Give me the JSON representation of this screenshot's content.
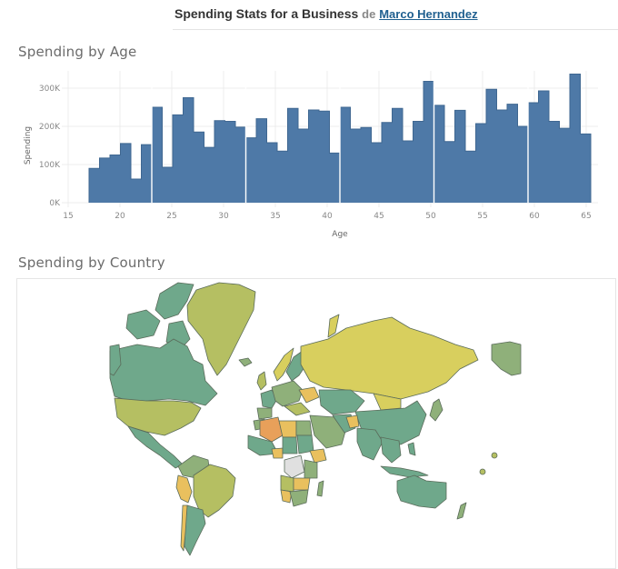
{
  "header": {
    "title": "Spending Stats for a Business",
    "by": "de",
    "author": "Marco Hernandez"
  },
  "sections": {
    "histogram_title": "Spending by Age",
    "map_title": "Spending by Country"
  },
  "colors": {
    "bar": "#4e79a7",
    "grid": "#ececec",
    "axis_text": "#888888",
    "map_teal": "#6fa88b",
    "map_sage": "#8fb07a",
    "map_olive": "#b5bf62",
    "map_yellow": "#d8cf5e",
    "map_light_orange": "#e9c05e",
    "map_orange": "#e8a05a",
    "map_nodata": "#e0e0e0",
    "map_border": "#5a6b5a"
  },
  "chart_data": [
    {
      "type": "bar",
      "title": "Spending by Age",
      "xlabel": "Age",
      "ylabel": "Spending",
      "xlim": [
        15,
        66
      ],
      "ylim": [
        0,
        340000
      ],
      "x_ticks": [
        15,
        20,
        25,
        30,
        35,
        40,
        45,
        50,
        55,
        60,
        65
      ],
      "y_ticks": [
        0,
        100000,
        200000,
        300000
      ],
      "y_tick_labels": [
        "0K",
        "100K",
        "200K",
        "300K"
      ],
      "grid": true,
      "legend": "none",
      "categories": [
        18,
        19,
        20,
        21,
        22,
        23,
        24,
        25,
        26,
        27,
        28,
        29,
        30,
        31,
        32,
        33,
        34,
        35,
        36,
        37,
        38,
        39,
        40,
        41,
        42,
        43,
        44,
        45,
        46,
        47,
        48,
        49,
        50,
        51,
        52,
        53,
        54,
        55,
        56,
        57,
        58,
        59,
        60,
        61,
        62,
        63,
        64,
        65
      ],
      "values": [
        90000,
        117000,
        125000,
        155000,
        62000,
        152000,
        250000,
        93000,
        230000,
        275000,
        185000,
        145000,
        215000,
        213000,
        198000,
        170000,
        220000,
        157000,
        135000,
        247000,
        193000,
        243000,
        240000,
        130000,
        250000,
        193000,
        197000,
        157000,
        210000,
        247000,
        162000,
        213000,
        318000,
        255000,
        160000,
        242000,
        135000,
        207000,
        297000,
        243000,
        258000,
        200000,
        262000,
        293000,
        213000,
        195000,
        337000,
        180000
      ],
      "separators_after_age": [
        23,
        32,
        41,
        50,
        59
      ]
    },
    {
      "type": "heatmap",
      "title": "Spending by Country",
      "subtype": "choropleth",
      "legend": "none",
      "regions": [
        {
          "name": "Canada",
          "level": "teal-green"
        },
        {
          "name": "Greenland",
          "level": "olive"
        },
        {
          "name": "United States",
          "level": "olive"
        },
        {
          "name": "Alaska",
          "level": "sage"
        },
        {
          "name": "Mexico",
          "level": "teal"
        },
        {
          "name": "Brazil",
          "level": "olive"
        },
        {
          "name": "Argentina",
          "level": "teal"
        },
        {
          "name": "Peru",
          "level": "light-orange"
        },
        {
          "name": "Russia",
          "level": "yellow"
        },
        {
          "name": "China",
          "level": "teal"
        },
        {
          "name": "Mongolia",
          "level": "yellow"
        },
        {
          "name": "India",
          "level": "teal"
        },
        {
          "name": "Kazakhstan",
          "level": "teal"
        },
        {
          "name": "Afghanistan",
          "level": "light-orange"
        },
        {
          "name": "Algeria",
          "level": "orange"
        },
        {
          "name": "Libya",
          "level": "light-orange"
        },
        {
          "name": "Egypt",
          "level": "sage"
        },
        {
          "name": "Sudan",
          "level": "teal"
        },
        {
          "name": "Ethiopia",
          "level": "light-orange"
        },
        {
          "name": "DR Congo",
          "level": "no-data"
        },
        {
          "name": "Namibia",
          "level": "light-orange"
        },
        {
          "name": "South Africa",
          "level": "sage"
        },
        {
          "name": "Madagascar",
          "level": "sage"
        },
        {
          "name": "Australia",
          "level": "teal"
        },
        {
          "name": "New Zealand",
          "level": "sage"
        },
        {
          "name": "Saudi Arabia",
          "level": "sage"
        },
        {
          "name": "Ukraine",
          "level": "light-orange"
        },
        {
          "name": "France",
          "level": "teal"
        },
        {
          "name": "Japan",
          "level": "sage"
        },
        {
          "name": "Indonesia",
          "level": "teal"
        }
      ]
    }
  ]
}
